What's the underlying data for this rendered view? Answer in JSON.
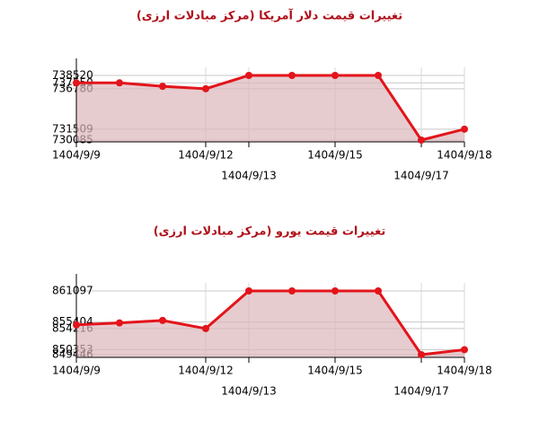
{
  "chart_data": [
    {
      "type": "line",
      "title": "تغییرات قیمت دلار آمریکا (مرکز مبادلات ارزی)",
      "categories": [
        "1404/9/9",
        null,
        null,
        "1404/9/12",
        "1404/9/13",
        null,
        "1404/9/15",
        null,
        "1404/9/17",
        "1404/9/18"
      ],
      "values": [
        737550,
        737550,
        737100,
        736780,
        738520,
        738520,
        738520,
        738520,
        730085,
        731509
      ],
      "color": "#e3141b",
      "area_color": "#dcb6ba",
      "ylim": [
        729850,
        739575
      ],
      "yticks": [
        730085,
        731509,
        736780,
        737550,
        738520
      ],
      "grid": true
    },
    {
      "type": "line",
      "title": "تغییرات قیمت یورو (مرکز مبادلات ارزی)",
      "categories": [
        "1404/9/9",
        null,
        null,
        "1404/9/12",
        "1404/9/13",
        null,
        "1404/9/15",
        null,
        "1404/9/17",
        "1404/9/18"
      ],
      "values": [
        854900,
        855250,
        855700,
        854216,
        861097,
        861097,
        861097,
        861097,
        849446,
        850353
      ],
      "color": "#e3141b",
      "area_color": "#dcb6ba",
      "ylim": [
        848950,
        862575
      ],
      "yticks": [
        849446,
        850353,
        854216,
        855404,
        861097
      ],
      "grid": true
    }
  ]
}
